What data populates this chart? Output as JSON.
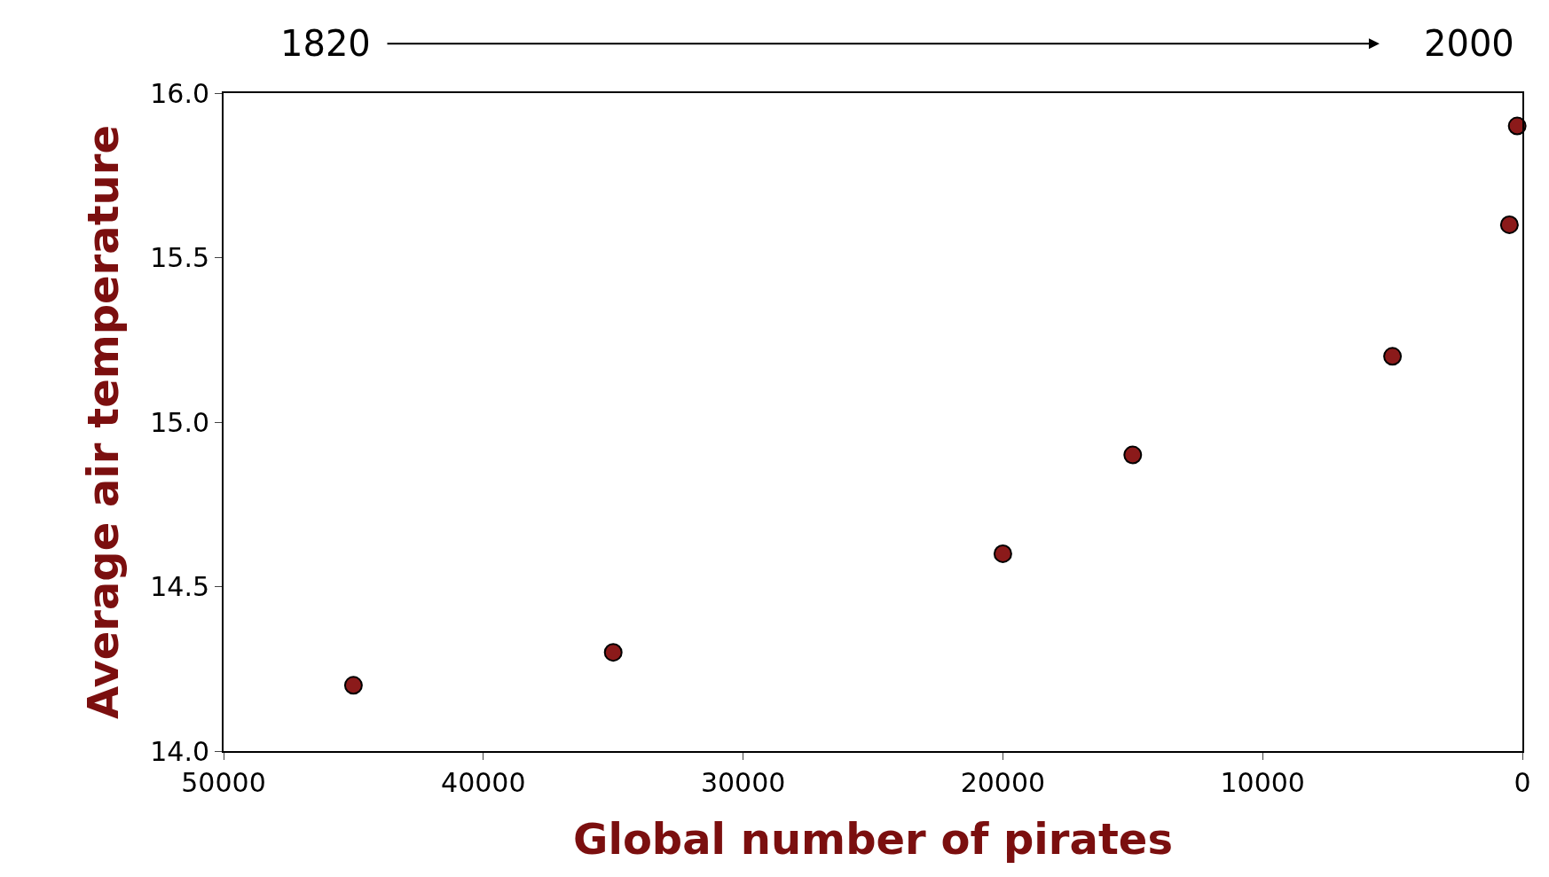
{
  "chart_data": {
    "type": "scatter",
    "xlabel": "Global number of pirates",
    "ylabel": "Average air temperature",
    "x": [
      45000,
      35000,
      20000,
      15000,
      5000,
      500,
      200
    ],
    "values": [
      14.2,
      14.3,
      14.6,
      14.9,
      15.2,
      15.6,
      15.9
    ],
    "color": "#8b1a1a",
    "marker": "circle",
    "xlim": [
      50000,
      0
    ],
    "xticks": [
      50000,
      40000,
      30000,
      20000,
      10000,
      0
    ],
    "ylim": [
      14.0,
      16.0
    ],
    "yticks": [
      {
        "value": 14.0,
        "label": "14.0"
      },
      {
        "value": 14.5,
        "label": "14.5"
      },
      {
        "value": 15.0,
        "label": "15.0"
      },
      {
        "value": 15.5,
        "label": "15.5"
      },
      {
        "value": 16.0,
        "label": "16.0"
      }
    ],
    "annotations": [
      "1820",
      "2000"
    ]
  }
}
